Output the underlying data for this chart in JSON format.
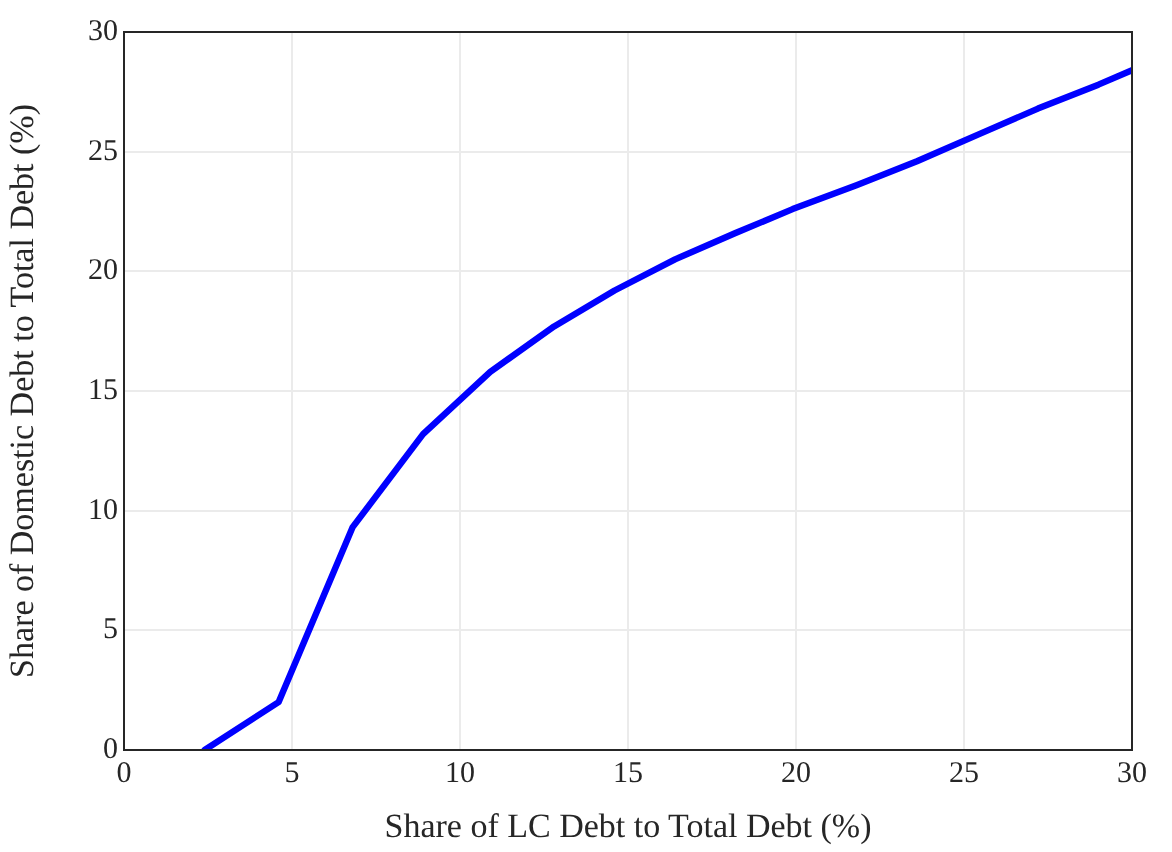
{
  "chart_data": {
    "type": "line",
    "xlabel": "Share of LC Debt to Total Debt (%)",
    "ylabel": "Share of Domestic Debt to Total Debt (%)",
    "x": [
      2.4,
      4.6,
      6.8,
      8.9,
      10.9,
      12.8,
      14.6,
      16.4,
      18.2,
      19.9,
      21.8,
      23.6,
      25.4,
      27.2,
      29.0,
      30
    ],
    "series": [
      {
        "color": "#0000ff",
        "values": [
          0,
          2.0,
          9.3,
          13.2,
          15.8,
          17.7,
          19.2,
          20.5,
          21.6,
          22.6,
          23.6,
          24.6,
          25.7,
          26.8,
          27.8,
          28.4
        ]
      }
    ],
    "xlim": [
      0,
      30
    ],
    "ylim": [
      0,
      30
    ],
    "xticks": [
      0,
      5,
      10,
      15,
      20,
      25,
      30
    ],
    "yticks": [
      0,
      5,
      10,
      15,
      20,
      25,
      30
    ],
    "grid": true,
    "legend": false,
    "marker": "none",
    "line_style": "solid"
  }
}
